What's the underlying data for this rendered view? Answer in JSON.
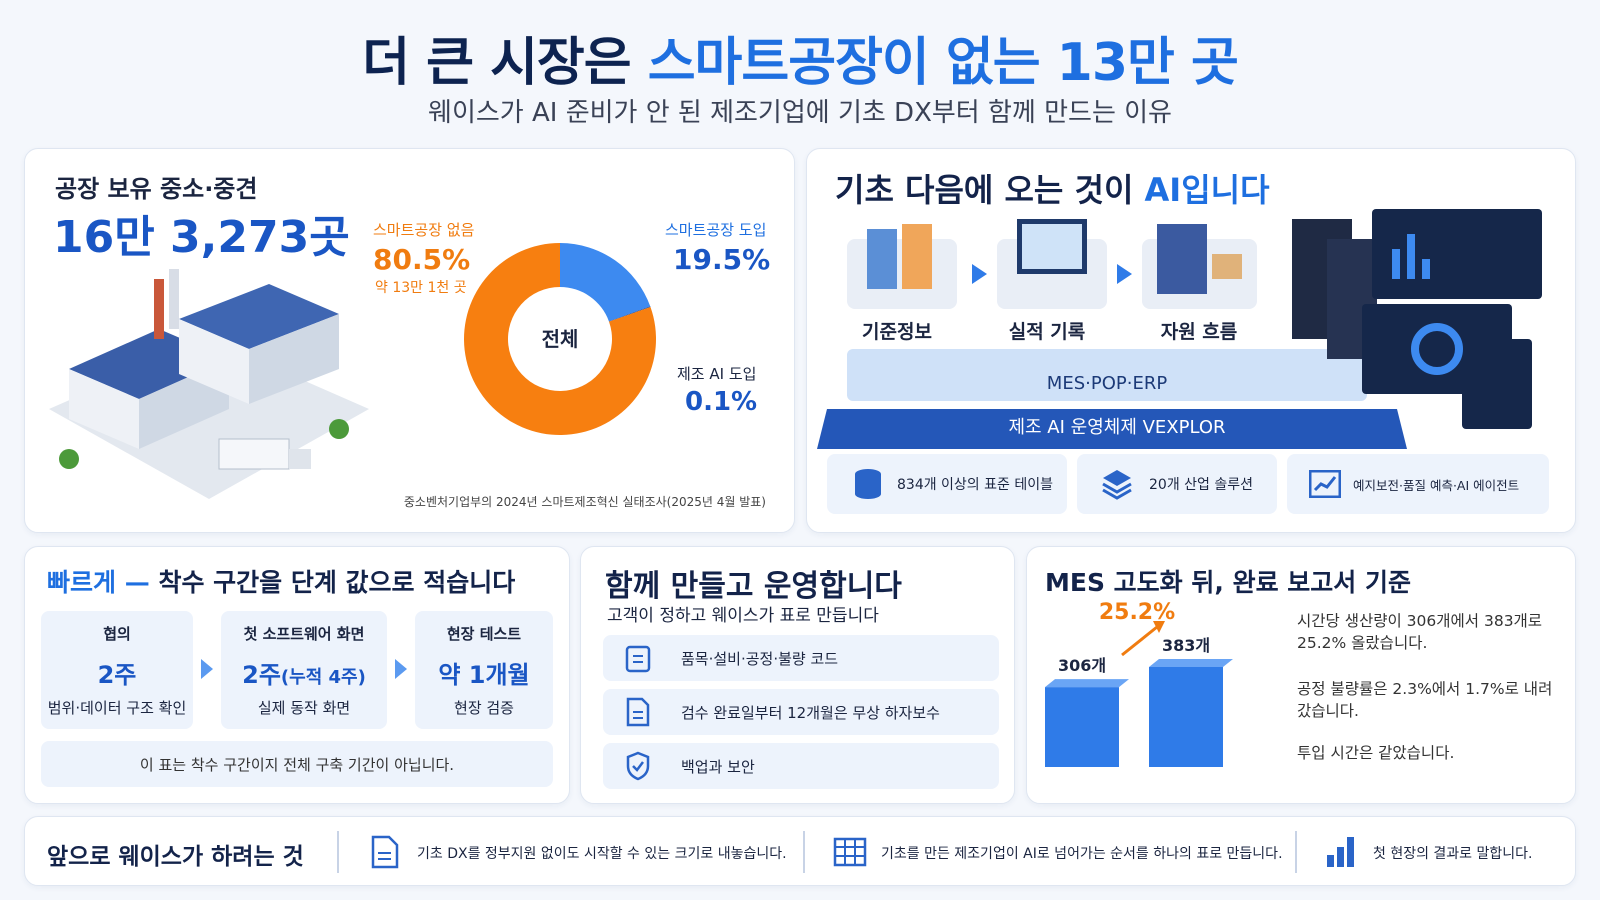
{
  "header": {
    "title_prefix": "더 큰 시장은",
    "title_highlight": "스마트공장이 없는 13만 곳",
    "subtitle": "웨이스가 AI 준비가 안 된 제조기업에 기초 DX부터 함께 만드는 이유"
  },
  "market": {
    "label": "공장 보유 중소·중견",
    "total": "16만 3,273곳",
    "no_smart_sub": "약 13만 1천 곳",
    "source": "중소벤처기업부의 2024년 스마트제조혁신 실태조사(2025년 4월 발표)"
  },
  "chart_data": [
    {
      "type": "pie",
      "center_label": "전체",
      "categories": [
        "스마트공장 도입",
        "제조 AI 도입",
        "스마트공장 없음"
      ],
      "values": [
        19.5,
        0.1,
        80.5
      ],
      "value_labels": [
        "19.5%",
        "0.1%",
        "80.5%"
      ],
      "colors": [
        "#3d8af0",
        "#1e3f8f",
        "#f77f10"
      ]
    },
    {
      "type": "bar",
      "title": "MES 고도화 뒤, 완료 보고서 기준",
      "values": [
        306,
        383
      ],
      "value_labels": [
        "306개",
        "383개"
      ],
      "annotation": "25.2%",
      "color": "#2f7be8"
    }
  ],
  "ai_panel": {
    "title_prefix": "기초 다음에 오는 것이",
    "title_highlight": "AI입니다",
    "steps": [
      "기준정보",
      "실적 기록",
      "자원 흐름"
    ],
    "layers": [
      "MES·POP·ERP",
      "제조 AI 운영체제 VEXPLOR"
    ],
    "features": [
      "834개 이상의 표준 테이블",
      "20개 산업 솔루션",
      "예지보전·품질 예측·AI 에이전트"
    ]
  },
  "speed": {
    "title_prefix": "빠르게 —",
    "title": "착수 구간을 단계 값으로 적습니다",
    "stages": [
      {
        "name": "협의",
        "duration": "2주",
        "desc": "범위·데이터 구조 확인"
      },
      {
        "name": "첫 소프트웨어 화면",
        "duration": "2주",
        "duration_note": "(누적 4주)",
        "desc": "실제 동작 화면"
      },
      {
        "name": "현장 테스트",
        "duration": "약 1개월",
        "desc": "현장 검증"
      }
    ],
    "note": "이 표는 착수 구간이지 전체 구축 기간이 아닙니다."
  },
  "together": {
    "title": "함께 만들고 운영합니다",
    "subtitle": "고객이 정하고 웨이스가 표로 만듭니다",
    "items": [
      "품목·설비·공정·불량 코드",
      "검수 완료일부터 12개월은 무상 하자보수",
      "백업과 보안"
    ]
  },
  "results": {
    "notes": [
      "시간당 생산량이 306개에서 383개로 25.2% 올랐습니다.",
      "공정 불량률은 2.3%에서 1.7%로 내려갔습니다.",
      "투입 시간은 같았습니다."
    ]
  },
  "footer": {
    "title": "앞으로 웨이스가 하려는 것",
    "items": [
      "기초 DX를 정부지원 없이도 시작할 수 있는 크기로 내놓습니다.",
      "기초를 만든 제조기업이 AI로 넘어가는 순서를 하나의 표로 만듭니다.",
      "첫 현장의 결과로 말합니다."
    ]
  }
}
